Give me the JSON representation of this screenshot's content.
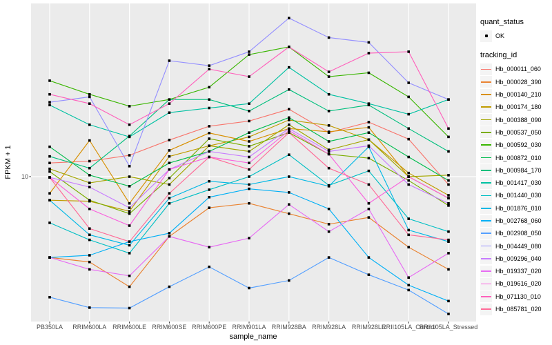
{
  "figure": {
    "background": "#FFFFFF",
    "panel_background": "#EBEBEB",
    "gridline_color": "#FFFFFF",
    "point_color": "#000000",
    "axis_text_color": "#4D4D4D",
    "tick_color": "#333333"
  },
  "axes": {
    "x_title": "sample_name",
    "y_title": "FPKM + 1",
    "y_tick_labels": [
      "10"
    ],
    "y_scale": "log10"
  },
  "legend_quant": {
    "title": "quant_status",
    "items": [
      {
        "label": "OK",
        "symbol": "point"
      }
    ]
  },
  "legend_tracking": {
    "title": "tracking_id"
  },
  "chart_data": {
    "type": "line",
    "title": "",
    "xlabel": "sample_name",
    "ylabel": "FPKM + 1",
    "y_scale": "log10",
    "ylim": [
      1.45,
      100
    ],
    "y_breaks": [
      10
    ],
    "grid": true,
    "points": "black-squares",
    "legend_position": "right",
    "categories": [
      "PB350LA",
      "RRIM600LA",
      "RRIM600LE",
      "RRIM600SE",
      "RRIM600PE",
      "RRIM901LA",
      "RRIM928BA",
      "RRIM928LA",
      "RRIM928LE",
      "RRII105LA_Control",
      "RRII105LA_Stressed"
    ],
    "series": [
      {
        "name": "Hb_000011_060",
        "color": "#F8766D",
        "values": [
          12.0,
          12.3,
          13.3,
          16.3,
          19.6,
          21.0,
          24.6,
          18.0,
          20.7,
          16.5,
          9.0
        ]
      },
      {
        "name": "Hb_000028_390",
        "color": "#EA8331",
        "values": [
          3.4,
          3.2,
          2.3,
          4.5,
          6.6,
          7.0,
          6.1,
          5.3,
          5.8,
          3.9,
          2.9
        ]
      },
      {
        "name": "Hb_000140_210",
        "color": "#D89000",
        "values": [
          8.0,
          16.2,
          7.0,
          14.2,
          17.9,
          16.0,
          19.0,
          18.2,
          19.3,
          10.0,
          7.5
        ]
      },
      {
        "name": "Hb_000174_180",
        "color": "#C09B00",
        "values": [
          7.3,
          7.2,
          6.3,
          13.1,
          15.1,
          17.0,
          21.3,
          19.8,
          16.4,
          10.5,
          7.8
        ]
      },
      {
        "name": "Hb_000388_090",
        "color": "#A3A500",
        "values": [
          11.1,
          9.2,
          10.0,
          9.0,
          15.1,
          14.0,
          20.0,
          14.3,
          16.4,
          10.0,
          10.2
        ]
      },
      {
        "name": "Hb_000537_050",
        "color": "#7CAE00",
        "values": [
          10.7,
          7.3,
          6.1,
          9.8,
          16.6,
          15.0,
          18.0,
          13.5,
          12.8,
          9.5,
          6.8
        ]
      },
      {
        "name": "Hb_000592_030",
        "color": "#39B600",
        "values": [
          36.0,
          30.0,
          25.6,
          28.0,
          33.0,
          51.0,
          56.5,
          38.0,
          40.0,
          29.0,
          17.0
        ]
      },
      {
        "name": "Hb_000872_010",
        "color": "#00BC4D",
        "values": [
          14.9,
          10.2,
          8.8,
          12.0,
          14.0,
          18.0,
          22.0,
          16.0,
          18.0,
          13.0,
          9.5
        ]
      },
      {
        "name": "Hb_000984_170",
        "color": "#00BF7D",
        "values": [
          13.1,
          11.2,
          17.2,
          28.0,
          28.0,
          24.0,
          32.0,
          24.0,
          26.0,
          19.0,
          14.0
        ]
      },
      {
        "name": "Hb_001417_030",
        "color": "#00C1A2",
        "values": [
          26.0,
          20.0,
          17.0,
          23.5,
          25.0,
          26.5,
          43.0,
          30.0,
          26.5,
          23.0,
          28.0
        ]
      },
      {
        "name": "Hb_001440_030",
        "color": "#00BFC4",
        "values": [
          5.4,
          4.3,
          3.6,
          7.0,
          8.4,
          10.0,
          13.4,
          8.9,
          10.8,
          5.7,
          4.8
        ]
      },
      {
        "name": "Hb_001876_010",
        "color": "#00B8E5",
        "values": [
          7.3,
          4.6,
          4.0,
          7.5,
          9.4,
          9.0,
          10.0,
          8.8,
          14.9,
          4.9,
          4.2
        ]
      },
      {
        "name": "Hb_002768_060",
        "color": "#00B0F6",
        "values": [
          3.4,
          3.5,
          4.2,
          4.7,
          7.6,
          8.5,
          8.1,
          6.5,
          3.4,
          2.35,
          1.9
        ]
      },
      {
        "name": "Hb_002908_050",
        "color": "#55A0FF",
        "values": [
          2.0,
          1.74,
          1.73,
          2.3,
          3.0,
          2.26,
          2.5,
          3.4,
          2.7,
          2.2,
          1.6
        ]
      },
      {
        "name": "Hb_004449_080",
        "color": "#9590FF",
        "values": [
          27.0,
          29.0,
          11.5,
          47.0,
          44.0,
          53.0,
          83.0,
          64.0,
          60.0,
          35.0,
          28.0
        ]
      },
      {
        "name": "Hb_009296_040",
        "color": "#C77CFF",
        "values": [
          9.9,
          8.7,
          6.6,
          11.0,
          14.0,
          13.0,
          19.0,
          14.0,
          15.1,
          9.0,
          7.0
        ]
      },
      {
        "name": "Hb_019337_020",
        "color": "#E76BF3",
        "values": [
          3.4,
          2.9,
          2.66,
          4.5,
          3.9,
          4.4,
          6.9,
          4.8,
          6.5,
          2.6,
          3.6
        ]
      },
      {
        "name": "Hb_019616_020",
        "color": "#F962DE",
        "values": [
          9.9,
          6.5,
          5.2,
          11.0,
          13.0,
          12.0,
          18.5,
          13.5,
          7.0,
          10.0,
          7.5
        ]
      },
      {
        "name": "Hb_071130_010",
        "color": "#FF62BC",
        "values": [
          30.0,
          26.5,
          20.0,
          26.5,
          42.0,
          38.0,
          56.5,
          40.5,
          52.0,
          53.0,
          19.0
        ]
      },
      {
        "name": "Hb_085781_020",
        "color": "#FF6A97",
        "values": [
          9.9,
          5.0,
          4.2,
          8.0,
          13.0,
          11.0,
          18.0,
          11.2,
          9.0,
          4.6,
          4.3
        ]
      }
    ]
  }
}
